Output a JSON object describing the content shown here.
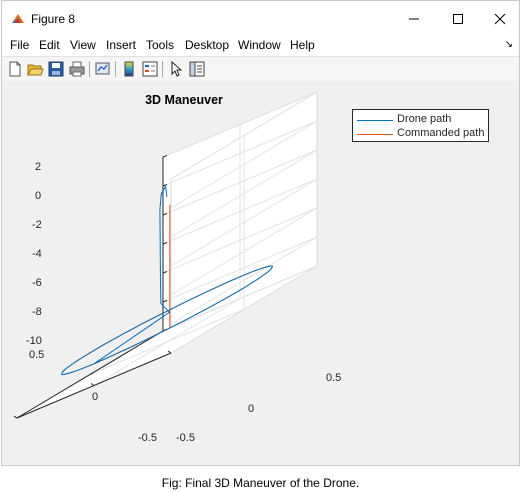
{
  "window": {
    "title": "Figure 8",
    "icon": "matlab-icon",
    "controls": [
      "minimize-icon",
      "maximize-icon",
      "close-icon"
    ]
  },
  "menu": {
    "items": [
      "File",
      "Edit",
      "View",
      "Insert",
      "Tools",
      "Desktop",
      "Window",
      "Help"
    ],
    "overflow_icon": "dock-arrow-icon"
  },
  "toolbar": {
    "buttons": [
      "new-figure-icon",
      "open-file-icon",
      "save-icon",
      "print-icon",
      "link-plot-icon",
      "insert-colorbar-icon",
      "insert-legend-icon",
      "pointer-icon",
      "property-inspector-icon"
    ]
  },
  "chart_data": {
    "type": "line",
    "projection": "3d",
    "title": "3D Maneuver",
    "legend": {
      "placement": "top-right",
      "entries": [
        {
          "name": "Drone path",
          "color": "#0072bd"
        },
        {
          "name": "Commanded path",
          "color": "#d95319"
        }
      ]
    },
    "xlim": [
      -0.5,
      0.5
    ],
    "ylim": [
      -0.5,
      0.5
    ],
    "zlim": [
      -10,
      2
    ],
    "x_ticks": [
      "0.5",
      "0",
      "-0.5"
    ],
    "y_ticks": [
      "-0.5",
      "0",
      "0.5"
    ],
    "z_ticks": [
      "2",
      "0",
      "-2",
      "-4",
      "-6",
      "-8",
      "-10"
    ],
    "grid": true,
    "series": [
      {
        "name": "Drone path",
        "color": "#0072bd",
        "points": [
          [
            0,
            0,
            0
          ],
          [
            0.02,
            0.01,
            0.8
          ],
          [
            0.06,
            0.02,
            0.5
          ],
          [
            0.08,
            0.03,
            -0.5
          ],
          [
            0.1,
            0.05,
            -2
          ],
          [
            0.12,
            0.07,
            -4
          ],
          [
            0.15,
            0.1,
            -5.5
          ],
          [
            0.2,
            0.15,
            -6.8
          ],
          [
            0.3,
            0.3,
            -7.5
          ],
          [
            0.5,
            0.0,
            -8.5
          ],
          [
            0.35,
            -0.35,
            -8.5
          ],
          [
            0.0,
            -0.5,
            -8.5
          ],
          [
            -0.35,
            -0.35,
            -8.5
          ],
          [
            -0.5,
            0.0,
            -8.5
          ],
          [
            -0.35,
            0.35,
            -8.5
          ],
          [
            0.0,
            0.5,
            -8.5
          ],
          [
            0.35,
            0.35,
            -8.5
          ],
          [
            0.5,
            0.0,
            -8.5
          ]
        ]
      },
      {
        "name": "Commanded path",
        "color": "#d95319",
        "points": [
          [
            0.35,
            0.35,
            0
          ],
          [
            0.35,
            0.35,
            -8.5
          ],
          [
            0.5,
            0.0,
            -8.5
          ],
          [
            0.35,
            -0.35,
            -8.5
          ],
          [
            0.0,
            -0.5,
            -8.5
          ],
          [
            -0.35,
            -0.35,
            -8.5
          ],
          [
            -0.5,
            0.0,
            -8.5
          ],
          [
            -0.35,
            0.35,
            -8.5
          ],
          [
            0.0,
            0.5,
            -8.5
          ],
          [
            0.35,
            0.35,
            -8.5
          ]
        ]
      }
    ]
  },
  "caption": "Fig: Final 3D Maneuver of the Drone."
}
